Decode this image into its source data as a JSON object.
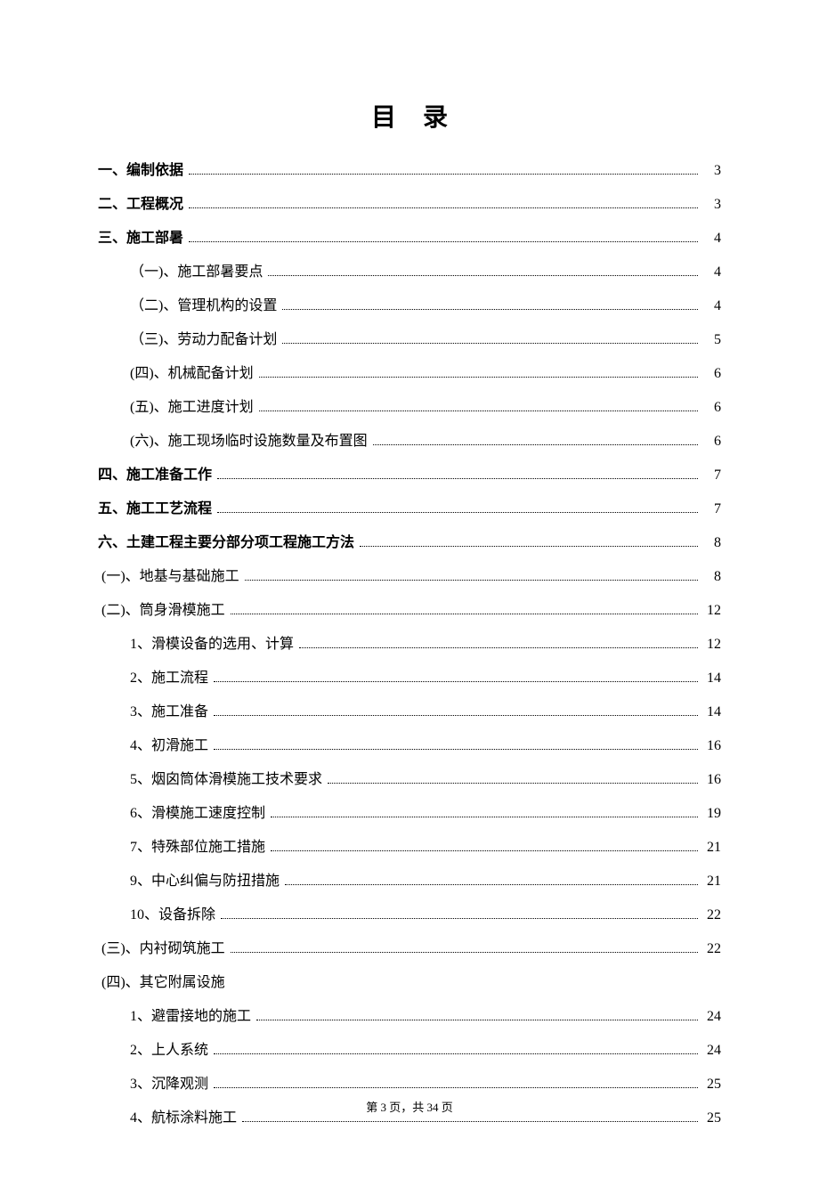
{
  "title": "目录",
  "footer": {
    "prefix": "第",
    "current": "3",
    "mid": "页，共",
    "total": "34",
    "suffix": "页"
  },
  "entries": [
    {
      "label": "一、编制依据",
      "page": "3",
      "bold": true,
      "indent": 0,
      "leader": true
    },
    {
      "label": "二、工程概况",
      "page": "3",
      "bold": true,
      "indent": 0,
      "leader": true
    },
    {
      "label": "三、施工部暑",
      "page": "4",
      "bold": true,
      "indent": 0,
      "leader": true
    },
    {
      "label": "（一)、施工部暑要点",
      "page": "4",
      "bold": false,
      "indent": 1,
      "leader": true
    },
    {
      "label": "（二)、管理机构的设置",
      "page": "4",
      "bold": false,
      "indent": 1,
      "leader": true
    },
    {
      "label": "（三)、劳动力配备计划",
      "page": "5",
      "bold": false,
      "indent": 1,
      "leader": true
    },
    {
      "label": "(四)、机械配备计划",
      "page": "6",
      "bold": false,
      "indent": 1,
      "leader": true
    },
    {
      "label": "(五)、施工进度计划",
      "page": "6",
      "bold": false,
      "indent": 1,
      "leader": true
    },
    {
      "label": "(六)、施工现场临时设施数量及布置图",
      "page": "6",
      "bold": false,
      "indent": 1,
      "leader": true
    },
    {
      "label": "四、施工准备工作",
      "page": "7",
      "bold": true,
      "indent": 0,
      "leader": true
    },
    {
      "label": "五、施工工艺流程",
      "page": "7",
      "bold": true,
      "indent": 0,
      "leader": true
    },
    {
      "label": "六、土建工程主要分部分项工程施工方法",
      "page": "8",
      "bold": true,
      "indent": 0,
      "leader": true
    },
    {
      "label": "(一)、地基与基础施工",
      "page": "8",
      "bold": false,
      "indent": "0a",
      "leader": true
    },
    {
      "label": "(二)、筒身滑模施工",
      "page": "12",
      "bold": false,
      "indent": "0a",
      "leader": true
    },
    {
      "label": "1、滑模设备的选用、计算",
      "page": "12",
      "bold": false,
      "indent": 1,
      "leader": true
    },
    {
      "label": "2、施工流程",
      "page": "14",
      "bold": false,
      "indent": 1,
      "leader": true
    },
    {
      "label": "3、施工准备",
      "page": "14",
      "bold": false,
      "indent": 1,
      "leader": true
    },
    {
      "label": "4、初滑施工",
      "page": "16",
      "bold": false,
      "indent": 1,
      "leader": true
    },
    {
      "label": "5、烟囟筒体滑模施工技术要求",
      "page": "16",
      "bold": false,
      "indent": 1,
      "leader": true
    },
    {
      "label": "6、滑模施工速度控制",
      "page": "19",
      "bold": false,
      "indent": 1,
      "leader": true
    },
    {
      "label": "7、特殊部位施工措施",
      "page": "21",
      "bold": false,
      "indent": 1,
      "leader": true
    },
    {
      "label": "9、中心纠偏与防扭措施",
      "page": "21",
      "bold": false,
      "indent": 1,
      "leader": true
    },
    {
      "label": "10、设备拆除",
      "page": "22",
      "bold": false,
      "indent": 1,
      "leader": true
    },
    {
      "label": "(三)、内衬砌筑施工",
      "page": "22",
      "bold": false,
      "indent": "0a",
      "leader": true
    },
    {
      "label": "(四)、其它附属设施",
      "page": "",
      "bold": false,
      "indent": "0a",
      "leader": false
    },
    {
      "label": "1、避雷接地的施工",
      "page": "24",
      "bold": false,
      "indent": 1,
      "leader": true
    },
    {
      "label": "2、上人系统",
      "page": "24",
      "bold": false,
      "indent": 1,
      "leader": true
    },
    {
      "label": "3、沉降观测",
      "page": "25",
      "bold": false,
      "indent": 1,
      "leader": true
    },
    {
      "label": "4、航标涂料施工",
      "page": "25",
      "bold": false,
      "indent": 1,
      "leader": true
    }
  ]
}
